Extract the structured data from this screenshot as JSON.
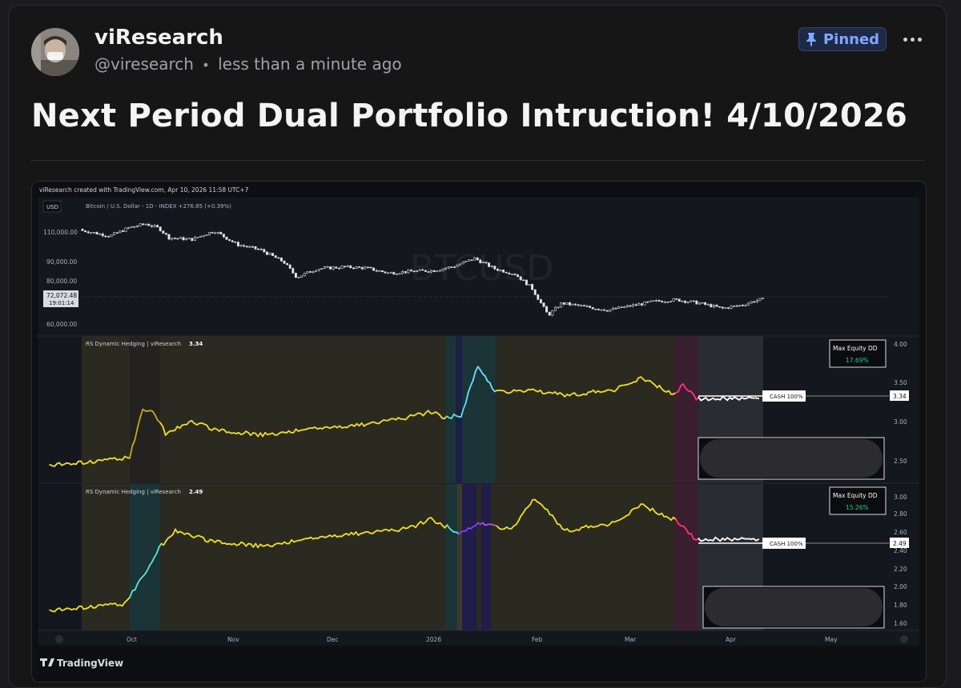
{
  "post": {
    "author_name": "viResearch",
    "handle": "@viresearch",
    "separator": "•",
    "timestamp": "less than a minute ago",
    "pinned_label": "Pinned",
    "title": "Next Period Dual Portfolio Intruction! 4/10/2026"
  },
  "icons": {
    "pin": "pin-icon",
    "more": "more-icon",
    "avatar": "avatar"
  },
  "chart": {
    "header": "viResearch created with TradingView.com, Apr 10, 2026 11:58 UTC+7",
    "currency": "USD",
    "symbol_line": "Bitcoin / U.S. Dollar - 1D - INDEX  +276.85 (+0.39%)",
    "watermark": "BTCUSD",
    "price_ticks": [
      "110,000.00",
      "90,000.00",
      "80,000.00",
      "60,000.00"
    ],
    "last_price": "72,072.48",
    "countdown": "19:01:14",
    "x_labels": [
      "Oct",
      "Nov",
      "Dec",
      "2026",
      "Feb",
      "Mar",
      "Apr",
      "May"
    ],
    "brand": "TradingView",
    "panes": [
      {
        "indicator": "RS Dynamic Hedging | viResearch",
        "value": "3.34",
        "dd_label": "Max Equity DD",
        "dd_value": "17.69%",
        "status": "CASH 100%",
        "ticks": [
          "4.00",
          "3.50",
          "3.00",
          "2.50"
        ]
      },
      {
        "indicator": "RS Dynamic Hedging | viResearch",
        "value": "2.49",
        "dd_label": "Max Equity DD",
        "dd_value": "15.26%",
        "status": "CASH 100%",
        "ticks": [
          "3.00",
          "2.80",
          "2.60",
          "2.40",
          "2.20",
          "2.00",
          "1.80",
          "1.60"
        ]
      }
    ],
    "colors": {
      "bg": "#14171e",
      "olive_band": "#2b2a20",
      "teal_band": "#1a3438",
      "magenta_band": "#3a1f2e",
      "gray_band": "#2a2c33",
      "line_yellow": "#f0dc2a",
      "line_cyan": "#5fe3d0",
      "line_magenta": "#ff2e8a",
      "line_purple": "#8a3cff",
      "dd_green": "#18d48a"
    }
  },
  "chart_data": [
    {
      "type": "candlestick",
      "title": "Bitcoin / U.S. Dollar - 1D - INDEX",
      "ylabel": "USD",
      "ylim": [
        57000,
        122000
      ],
      "x_labels": [
        "Oct",
        "Nov",
        "Dec",
        "2026",
        "Feb",
        "Mar",
        "Apr",
        "May"
      ],
      "close_series": [
        {
          "x": "Sep 15",
          "y": 113000
        },
        {
          "x": "Sep 22",
          "y": 112000
        },
        {
          "x": "Sep 27",
          "y": 109000
        },
        {
          "x": "Oct 1",
          "y": 114000
        },
        {
          "x": "Oct 6",
          "y": 116000
        },
        {
          "x": "Oct 10",
          "y": 113500
        },
        {
          "x": "Oct 13",
          "y": 108000
        },
        {
          "x": "Oct 20",
          "y": 107000
        },
        {
          "x": "Oct 27",
          "y": 112000
        },
        {
          "x": "Nov 3",
          "y": 104000
        },
        {
          "x": "Nov 10",
          "y": 101000
        },
        {
          "x": "Nov 17",
          "y": 94000
        },
        {
          "x": "Nov 21",
          "y": 85000
        },
        {
          "x": "Nov 27",
          "y": 90000
        },
        {
          "x": "Dec 5",
          "y": 91000
        },
        {
          "x": "Dec 12",
          "y": 90500
        },
        {
          "x": "Dec 19",
          "y": 87500
        },
        {
          "x": "Dec 26",
          "y": 88500
        },
        {
          "x": "Jan 2",
          "y": 89000
        },
        {
          "x": "Jan 8",
          "y": 91500
        },
        {
          "x": "Jan 14",
          "y": 96000
        },
        {
          "x": "Jan 20",
          "y": 90000
        },
        {
          "x": "Jan 26",
          "y": 87000
        },
        {
          "x": "Jan 31",
          "y": 79000
        },
        {
          "x": "Feb 5",
          "y": 63000
        },
        {
          "x": "Feb 9",
          "y": 70000
        },
        {
          "x": "Feb 16",
          "y": 68000
        },
        {
          "x": "Feb 23",
          "y": 66000
        },
        {
          "x": "Mar 2",
          "y": 68500
        },
        {
          "x": "Mar 9",
          "y": 71000
        },
        {
          "x": "Mar 16",
          "y": 72000
        },
        {
          "x": "Mar 23",
          "y": 70000
        },
        {
          "x": "Mar 30",
          "y": 67000
        },
        {
          "x": "Apr 5",
          "y": 69000
        },
        {
          "x": "Apr 10",
          "y": 72072.48
        }
      ]
    },
    {
      "type": "line",
      "title": "RS Dynamic Hedging | viResearch",
      "ylim": [
        2.3,
        4.1
      ],
      "last_value": 3.34,
      "max_equity_dd": "17.69%",
      "series": [
        {
          "x": "Sep 15",
          "y": 2.5
        },
        {
          "x": "Sep 25",
          "y": 2.55
        },
        {
          "x": "Oct 1",
          "y": 2.6
        },
        {
          "x": "Oct 5",
          "y": 3.2
        },
        {
          "x": "Oct 8",
          "y": 3.2
        },
        {
          "x": "Oct 12",
          "y": 2.9
        },
        {
          "x": "Oct 20",
          "y": 3.05
        },
        {
          "x": "Oct 27",
          "y": 2.95
        },
        {
          "x": "Nov 10",
          "y": 2.88
        },
        {
          "x": "Nov 25",
          "y": 2.95
        },
        {
          "x": "Dec 10",
          "y": 3.0
        },
        {
          "x": "Dec 25",
          "y": 3.1
        },
        {
          "x": "Jan 1",
          "y": 3.17
        },
        {
          "x": "Jan 5",
          "y": 3.1
        },
        {
          "x": "Jan 10",
          "y": 3.13
        },
        {
          "x": "Jan 15",
          "y": 3.75
        },
        {
          "x": "Jan 20",
          "y": 3.42
        },
        {
          "x": "Jan 30",
          "y": 3.45
        },
        {
          "x": "Feb 10",
          "y": 3.38
        },
        {
          "x": "Feb 25",
          "y": 3.45
        },
        {
          "x": "Mar 5",
          "y": 3.6
        },
        {
          "x": "Mar 15",
          "y": 3.4
        },
        {
          "x": "Mar 18",
          "y": 3.5
        },
        {
          "x": "Mar 22",
          "y": 3.34
        },
        {
          "x": "Apr 10",
          "y": 3.34
        }
      ]
    },
    {
      "type": "line",
      "title": "RS Dynamic Hedging | viResearch",
      "ylim": [
        1.55,
        3.05
      ],
      "last_value": 2.49,
      "max_equity_dd": "15.26%",
      "series": [
        {
          "x": "Sep 15",
          "y": 1.75
        },
        {
          "x": "Sep 30",
          "y": 1.82
        },
        {
          "x": "Oct 5",
          "y": 2.1
        },
        {
          "x": "Oct 10",
          "y": 2.4
        },
        {
          "x": "Oct 15",
          "y": 2.58
        },
        {
          "x": "Oct 25",
          "y": 2.48
        },
        {
          "x": "Nov 10",
          "y": 2.42
        },
        {
          "x": "Dec 1",
          "y": 2.52
        },
        {
          "x": "Dec 25",
          "y": 2.6
        },
        {
          "x": "Jan 1",
          "y": 2.7
        },
        {
          "x": "Jan 10",
          "y": 2.55
        },
        {
          "x": "Jan 15",
          "y": 2.65
        },
        {
          "x": "Jan 25",
          "y": 2.6
        },
        {
          "x": "Feb 1",
          "y": 2.92
        },
        {
          "x": "Feb 10",
          "y": 2.58
        },
        {
          "x": "Feb 25",
          "y": 2.66
        },
        {
          "x": "Mar 5",
          "y": 2.85
        },
        {
          "x": "Mar 15",
          "y": 2.7
        },
        {
          "x": "Mar 22",
          "y": 2.49
        },
        {
          "x": "Apr 10",
          "y": 2.49
        }
      ]
    }
  ]
}
